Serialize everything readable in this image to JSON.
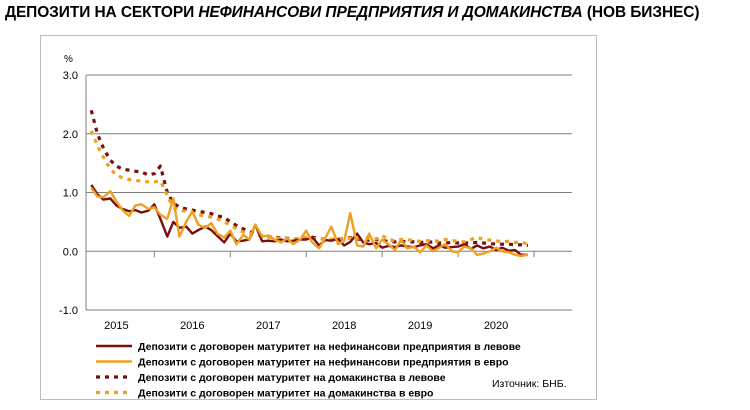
{
  "title": {
    "part1": "ДЕПОЗИТИ НА СЕКТОРИ ",
    "part2_italic": "НЕФИНАНСОВИ ПРЕДПРИЯТИЯ И ДОМАКИНСТВА",
    "part3": " (НОВ БИЗНЕС)"
  },
  "source_text": "Източник: БНБ.",
  "chart_data": {
    "type": "line",
    "ylabel": "%",
    "ylim": [
      -1.0,
      3.0
    ],
    "yticks": [
      "3.0",
      "2.0",
      "1.0",
      "0.0",
      "-1.0"
    ],
    "ytick_values": [
      3,
      2,
      1,
      0,
      -1
    ],
    "xlim": [
      2014.6,
      2021.0
    ],
    "xticks": [
      "2015",
      "2016",
      "2017",
      "2018",
      "2019",
      "2020"
    ],
    "xtick_positions": [
      2015.0,
      2016.0,
      2017.0,
      2018.0,
      2019.0,
      2020.0
    ],
    "xtick_marks": [
      2015.5,
      2016.5,
      2017.5,
      2018.5,
      2019.5,
      2020.5
    ],
    "grid": true,
    "legend_position": "bottom",
    "series": [
      {
        "name": "Депозити с договорен матуритет на нефинансови предприятия в левове",
        "color": "#7a0f0f",
        "style": "solid",
        "x": [
          2014.67,
          2014.75,
          2014.83,
          2014.92,
          2015.0,
          2015.08,
          2015.17,
          2015.25,
          2015.33,
          2015.42,
          2015.5,
          2015.58,
          2015.67,
          2015.75,
          2015.83,
          2015.92,
          2016.0,
          2016.08,
          2016.17,
          2016.25,
          2016.33,
          2016.42,
          2016.5,
          2016.58,
          2016.67,
          2016.75,
          2016.83,
          2016.92,
          2017.0,
          2017.08,
          2017.17,
          2017.25,
          2017.33,
          2017.42,
          2017.5,
          2017.58,
          2017.67,
          2017.75,
          2017.83,
          2017.92,
          2018.0,
          2018.08,
          2018.17,
          2018.25,
          2018.33,
          2018.42,
          2018.5,
          2018.58,
          2018.67,
          2018.75,
          2018.83,
          2018.92,
          2019.0,
          2019.08,
          2019.17,
          2019.25,
          2019.33,
          2019.42,
          2019.5,
          2019.58,
          2019.67,
          2019.75,
          2019.83,
          2019.92,
          2020.0,
          2020.08,
          2020.17,
          2020.25,
          2020.33,
          2020.42
        ],
        "values": [
          1.13,
          0.97,
          0.88,
          0.9,
          0.78,
          0.72,
          0.68,
          0.7,
          0.66,
          0.69,
          0.8,
          0.55,
          0.25,
          0.5,
          0.4,
          0.42,
          0.3,
          0.36,
          0.42,
          0.36,
          0.26,
          0.15,
          0.3,
          0.17,
          0.18,
          0.2,
          0.45,
          0.17,
          0.18,
          0.17,
          0.2,
          0.17,
          0.18,
          0.2,
          0.2,
          0.24,
          0.1,
          0.19,
          0.18,
          0.21,
          0.1,
          0.16,
          0.3,
          0.15,
          0.12,
          0.14,
          0.06,
          0.09,
          0.07,
          0.1,
          0.08,
          0.07,
          0.1,
          0.12,
          0.05,
          0.1,
          0.06,
          0.07,
          0.08,
          0.12,
          0.04,
          0.1,
          0.05,
          0.08,
          0.02,
          0.06,
          0.01,
          0.02,
          -0.06,
          -0.06
        ]
      },
      {
        "name": "Депозити с договорен матуритет на нефинансови предприятия в евро",
        "color": "#f0a020",
        "style": "solid",
        "x": [
          2014.67,
          2014.75,
          2014.83,
          2014.92,
          2015.0,
          2015.08,
          2015.17,
          2015.25,
          2015.33,
          2015.42,
          2015.5,
          2015.58,
          2015.67,
          2015.75,
          2015.83,
          2015.92,
          2016.0,
          2016.08,
          2016.17,
          2016.25,
          2016.33,
          2016.42,
          2016.5,
          2016.58,
          2016.67,
          2016.75,
          2016.83,
          2016.92,
          2017.0,
          2017.08,
          2017.17,
          2017.25,
          2017.33,
          2017.42,
          2017.5,
          2017.58,
          2017.67,
          2017.75,
          2017.83,
          2017.92,
          2018.0,
          2018.08,
          2018.17,
          2018.25,
          2018.33,
          2018.42,
          2018.5,
          2018.58,
          2018.67,
          2018.75,
          2018.83,
          2018.92,
          2019.0,
          2019.08,
          2019.17,
          2019.25,
          2019.33,
          2019.42,
          2019.5,
          2019.58,
          2019.67,
          2019.75,
          2019.83,
          2019.92,
          2020.0,
          2020.08,
          2020.17,
          2020.25,
          2020.33,
          2020.42
        ],
        "values": [
          1.08,
          0.93,
          0.92,
          1.02,
          0.85,
          0.7,
          0.6,
          0.78,
          0.8,
          0.72,
          0.75,
          0.62,
          0.55,
          0.9,
          0.25,
          0.5,
          0.68,
          0.45,
          0.4,
          0.48,
          0.3,
          0.23,
          0.35,
          0.12,
          0.28,
          0.2,
          0.45,
          0.25,
          0.27,
          0.2,
          0.15,
          0.22,
          0.12,
          0.2,
          0.35,
          0.15,
          0.05,
          0.22,
          0.42,
          0.12,
          0.18,
          0.65,
          0.1,
          0.08,
          0.3,
          0.05,
          0.2,
          0.12,
          0.02,
          0.2,
          0.05,
          0.08,
          -0.02,
          0.1,
          0.0,
          0.06,
          0.12,
          0.0,
          -0.02,
          0.08,
          0.05,
          -0.06,
          -0.04,
          0.0,
          0.06,
          0.0,
          -0.02,
          -0.06,
          -0.08,
          -0.06
        ]
      },
      {
        "name": "Депозити с договорен матуритет на домакинства в левове",
        "color": "#7a0f0f",
        "style": "dotted",
        "x": [
          2014.67,
          2014.75,
          2014.83,
          2014.92,
          2015.0,
          2015.08,
          2015.17,
          2015.25,
          2015.33,
          2015.42,
          2015.5,
          2015.58,
          2015.67,
          2015.75,
          2015.83,
          2015.92,
          2016.0,
          2016.08,
          2016.17,
          2016.25,
          2016.33,
          2016.42,
          2016.5,
          2016.58,
          2016.67,
          2016.75,
          2016.83,
          2016.92,
          2017.0,
          2017.08,
          2017.17,
          2017.25,
          2017.33,
          2017.42,
          2017.5,
          2017.58,
          2017.67,
          2017.75,
          2017.83,
          2017.92,
          2018.0,
          2018.08,
          2018.17,
          2018.25,
          2018.33,
          2018.42,
          2018.5,
          2018.58,
          2018.67,
          2018.75,
          2018.83,
          2018.92,
          2019.0,
          2019.08,
          2019.17,
          2019.25,
          2019.33,
          2019.42,
          2019.5,
          2019.58,
          2019.67,
          2019.75,
          2019.83,
          2019.92,
          2020.0,
          2020.08,
          2020.17,
          2020.25,
          2020.33,
          2020.42
        ],
        "values": [
          2.4,
          2.0,
          1.75,
          1.55,
          1.45,
          1.4,
          1.38,
          1.36,
          1.35,
          1.3,
          1.32,
          1.45,
          1.0,
          0.82,
          0.75,
          0.72,
          0.7,
          0.68,
          0.66,
          0.64,
          0.6,
          0.58,
          0.5,
          0.44,
          0.38,
          0.34,
          0.3,
          0.27,
          0.25,
          0.24,
          0.23,
          0.22,
          0.21,
          0.21,
          0.22,
          0.24,
          0.22,
          0.2,
          0.2,
          0.21,
          0.22,
          0.23,
          0.21,
          0.2,
          0.19,
          0.2,
          0.18,
          0.17,
          0.16,
          0.17,
          0.16,
          0.16,
          0.15,
          0.15,
          0.16,
          0.14,
          0.14,
          0.15,
          0.14,
          0.14,
          0.14,
          0.15,
          0.14,
          0.13,
          0.12,
          0.12,
          0.12,
          0.11,
          0.11,
          0.1
        ]
      },
      {
        "name": "Депозити с договорен матуритет на домакинства в евро",
        "color": "#f0a020",
        "style": "dotted",
        "x": [
          2014.67,
          2014.75,
          2014.83,
          2014.92,
          2015.0,
          2015.08,
          2015.17,
          2015.25,
          2015.33,
          2015.42,
          2015.5,
          2015.58,
          2015.67,
          2015.75,
          2015.83,
          2015.92,
          2016.0,
          2016.08,
          2016.17,
          2016.25,
          2016.33,
          2016.42,
          2016.5,
          2016.58,
          2016.67,
          2016.75,
          2016.83,
          2016.92,
          2017.0,
          2017.08,
          2017.17,
          2017.25,
          2017.33,
          2017.42,
          2017.5,
          2017.58,
          2017.67,
          2017.75,
          2017.83,
          2017.92,
          2018.0,
          2018.08,
          2018.17,
          2018.25,
          2018.33,
          2018.42,
          2018.5,
          2018.58,
          2018.67,
          2018.75,
          2018.83,
          2018.92,
          2019.0,
          2019.08,
          2019.17,
          2019.25,
          2019.33,
          2019.42,
          2019.5,
          2019.58,
          2019.67,
          2019.75,
          2019.83,
          2019.92,
          2020.0,
          2020.08,
          2020.17,
          2020.25,
          2020.33,
          2020.42
        ],
        "values": [
          2.05,
          1.8,
          1.6,
          1.4,
          1.3,
          1.25,
          1.22,
          1.2,
          1.2,
          1.18,
          1.18,
          1.2,
          0.95,
          0.75,
          0.7,
          0.68,
          0.65,
          0.62,
          0.6,
          0.58,
          0.55,
          0.5,
          0.45,
          0.38,
          0.33,
          0.3,
          0.28,
          0.26,
          0.24,
          0.23,
          0.22,
          0.21,
          0.21,
          0.22,
          0.24,
          0.22,
          0.21,
          0.21,
          0.2,
          0.21,
          0.22,
          0.22,
          0.22,
          0.23,
          0.22,
          0.21,
          0.27,
          0.2,
          0.18,
          0.2,
          0.2,
          0.18,
          0.17,
          0.18,
          0.18,
          0.17,
          0.2,
          0.18,
          0.17,
          0.16,
          0.2,
          0.24,
          0.2,
          0.19,
          0.18,
          0.16,
          0.17,
          0.15,
          0.16,
          0.12
        ]
      }
    ]
  }
}
